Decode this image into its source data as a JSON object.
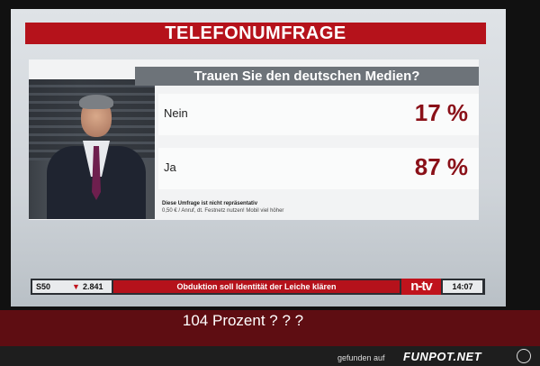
{
  "survey": {
    "title": "TELEFONUMFRAGE",
    "question": "Trauen Sie den deutschen Medien?",
    "answers": [
      {
        "label": "Nein",
        "percent": "17 %"
      },
      {
        "label": "Ja",
        "percent": "87 %"
      }
    ],
    "disclaimer_line1": "Diese Umfrage ist nicht repräsentativ",
    "disclaimer_line2": "0,50 € / Anruf, dt. Festnetz nutzen! Mobil viel höher"
  },
  "ticker": {
    "symbol": "S50",
    "arrow": "▼",
    "value": "2.841",
    "headline": "Obduktion soll Identität der Leiche klären",
    "logo": "n-tv",
    "time": "14:07"
  },
  "caption": "104 Prozent ? ? ?",
  "footer": {
    "found_on": "gefunden auf",
    "site": "FUNPOT.NET"
  }
}
